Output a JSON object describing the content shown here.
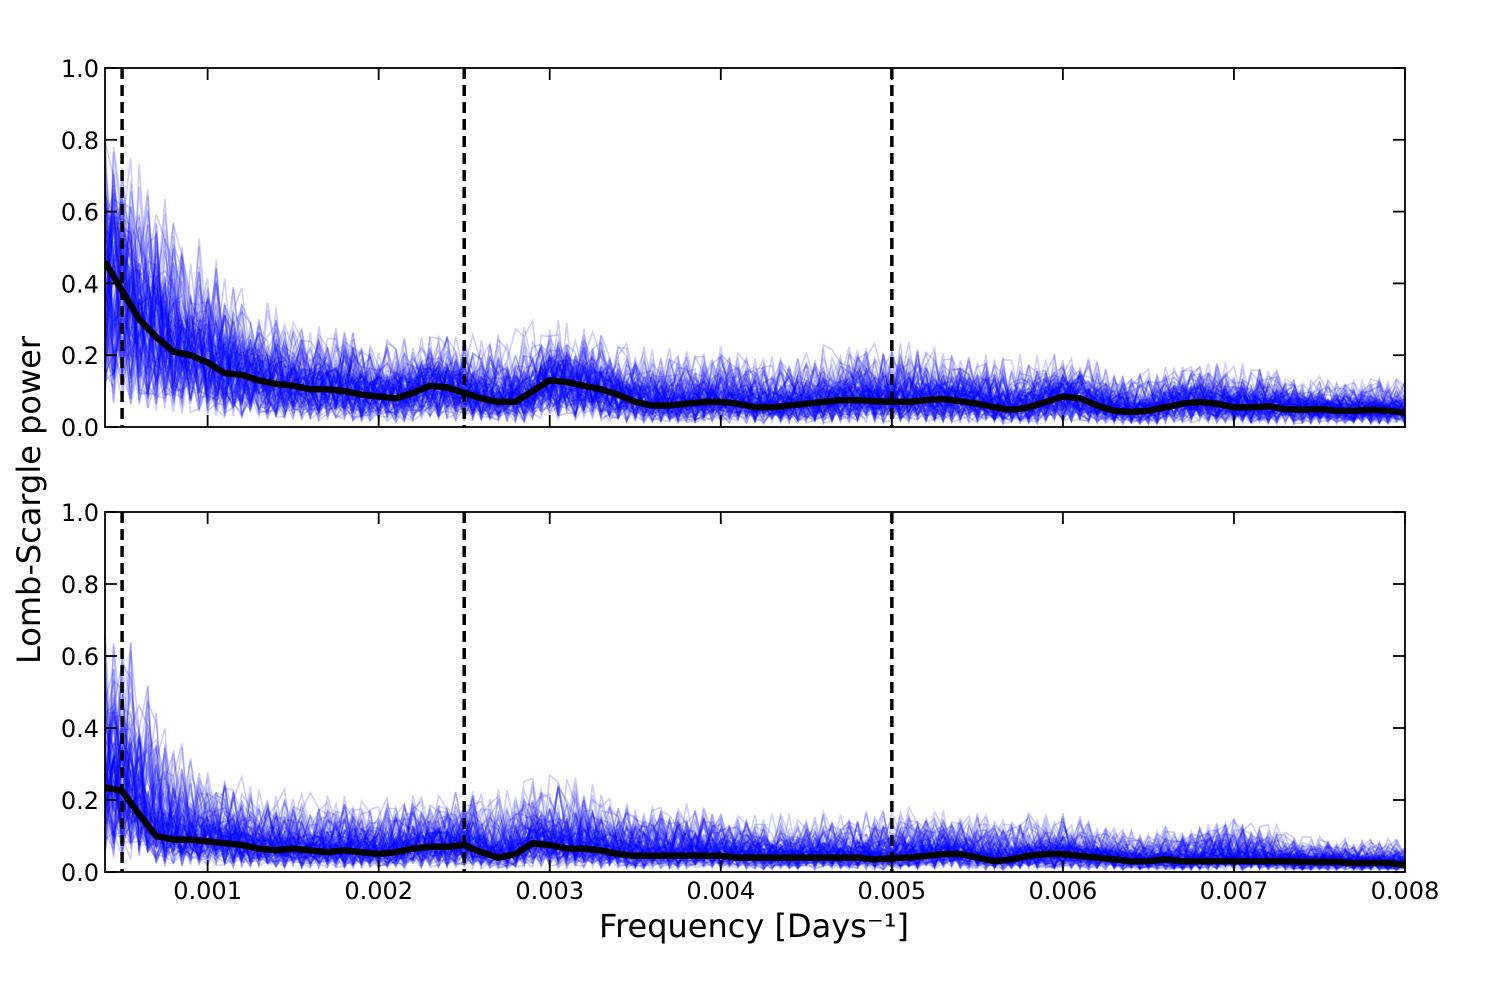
{
  "chart_data": [
    {
      "type": "line",
      "panel": "top",
      "xlim": [
        0.0004,
        0.008
      ],
      "ylim": [
        0.0,
        1.0
      ],
      "x_ticks": [
        0.001,
        0.002,
        0.003,
        0.004,
        0.005,
        0.006,
        0.007,
        0.008
      ],
      "y_ticks": [
        0.0,
        0.2,
        0.4,
        0.6,
        0.8,
        1.0
      ],
      "y_tick_labels": [
        "0.0",
        "0.2",
        "0.4",
        "0.6",
        "0.8",
        "1.0"
      ],
      "vlines": [
        0.0005,
        0.0025,
        0.005
      ],
      "vline_style": "dashed",
      "mean_series": {
        "color": "#000000",
        "x": [
          0.0004,
          0.0005,
          0.0006,
          0.0007,
          0.0008,
          0.0009,
          0.001,
          0.0011,
          0.0012,
          0.0013,
          0.0014,
          0.0015,
          0.0016,
          0.0017,
          0.0018,
          0.0019,
          0.002,
          0.0021,
          0.0022,
          0.0023,
          0.0024,
          0.0025,
          0.0026,
          0.0027,
          0.0028,
          0.0029,
          0.003,
          0.0031,
          0.0032,
          0.0033,
          0.0034,
          0.0035,
          0.0036,
          0.0037,
          0.0038,
          0.0039,
          0.004,
          0.0041,
          0.0042,
          0.0043,
          0.0044,
          0.0045,
          0.0046,
          0.0047,
          0.0048,
          0.0049,
          0.005,
          0.0051,
          0.0052,
          0.0053,
          0.0054,
          0.0055,
          0.0056,
          0.0057,
          0.0058,
          0.0059,
          0.006,
          0.0061,
          0.0062,
          0.0063,
          0.0064,
          0.0065,
          0.0066,
          0.0067,
          0.0068,
          0.0069,
          0.007,
          0.0071,
          0.0072,
          0.0073,
          0.0074,
          0.0075,
          0.0076,
          0.0077,
          0.0078,
          0.0079,
          0.008
        ],
        "y": [
          0.46,
          0.38,
          0.3,
          0.25,
          0.21,
          0.2,
          0.18,
          0.15,
          0.145,
          0.13,
          0.12,
          0.115,
          0.105,
          0.105,
          0.1,
          0.09,
          0.085,
          0.08,
          0.095,
          0.115,
          0.11,
          0.095,
          0.08,
          0.07,
          0.07,
          0.1,
          0.13,
          0.125,
          0.115,
          0.105,
          0.09,
          0.07,
          0.06,
          0.06,
          0.065,
          0.07,
          0.07,
          0.065,
          0.055,
          0.055,
          0.06,
          0.065,
          0.07,
          0.075,
          0.075,
          0.072,
          0.07,
          0.07,
          0.075,
          0.078,
          0.072,
          0.065,
          0.055,
          0.048,
          0.055,
          0.07,
          0.085,
          0.08,
          0.06,
          0.045,
          0.042,
          0.045,
          0.055,
          0.065,
          0.07,
          0.065,
          0.055,
          0.055,
          0.058,
          0.05,
          0.048,
          0.05,
          0.045,
          0.045,
          0.048,
          0.045,
          0.04
        ]
      },
      "sample_series": {
        "color": "#0000ff",
        "opacity": 0.2,
        "count": 100,
        "x_step": 5e-05,
        "envelope": {
          "x": [
            0.0004,
            0.0006,
            0.0008,
            0.001,
            0.0012,
            0.0015,
            0.002,
            0.0025,
            0.003,
            0.0035,
            0.004,
            0.0045,
            0.005,
            0.0055,
            0.006,
            0.0065,
            0.007,
            0.0075,
            0.008
          ],
          "y": [
            0.78,
            0.72,
            0.62,
            0.48,
            0.38,
            0.3,
            0.24,
            0.25,
            0.3,
            0.22,
            0.22,
            0.22,
            0.24,
            0.2,
            0.2,
            0.16,
            0.18,
            0.14,
            0.13
          ]
        }
      }
    },
    {
      "type": "line",
      "panel": "bottom",
      "xlim": [
        0.0004,
        0.008
      ],
      "ylim": [
        0.0,
        1.0
      ],
      "x_ticks": [
        0.001,
        0.002,
        0.003,
        0.004,
        0.005,
        0.006,
        0.007,
        0.008
      ],
      "x_tick_labels": [
        "0.001",
        "0.002",
        "0.003",
        "0.004",
        "0.005",
        "0.006",
        "0.007",
        "0.008"
      ],
      "y_ticks": [
        0.0,
        0.2,
        0.4,
        0.6,
        0.8,
        1.0
      ],
      "y_tick_labels": [
        "0.0",
        "0.2",
        "0.4",
        "0.6",
        "0.8",
        "1.0"
      ],
      "vlines": [
        0.0005,
        0.0025,
        0.005
      ],
      "vline_style": "dashed",
      "mean_series": {
        "color": "#000000",
        "x": [
          0.0004,
          0.0005,
          0.0006,
          0.0007,
          0.0008,
          0.0009,
          0.001,
          0.0011,
          0.0012,
          0.0013,
          0.0014,
          0.0015,
          0.0016,
          0.0017,
          0.0018,
          0.0019,
          0.002,
          0.0021,
          0.0022,
          0.0023,
          0.0024,
          0.0025,
          0.0026,
          0.0027,
          0.0028,
          0.0029,
          0.003,
          0.0031,
          0.0032,
          0.0033,
          0.0034,
          0.0035,
          0.0036,
          0.0037,
          0.0038,
          0.0039,
          0.004,
          0.0041,
          0.0042,
          0.0043,
          0.0044,
          0.0045,
          0.0046,
          0.0047,
          0.0048,
          0.0049,
          0.005,
          0.0051,
          0.0052,
          0.0053,
          0.0054,
          0.0055,
          0.0056,
          0.0057,
          0.0058,
          0.0059,
          0.006,
          0.0061,
          0.0062,
          0.0063,
          0.0064,
          0.0065,
          0.0066,
          0.0067,
          0.0068,
          0.0069,
          0.007,
          0.0071,
          0.0072,
          0.0073,
          0.0074,
          0.0075,
          0.0076,
          0.0077,
          0.0078,
          0.0079,
          0.008
        ],
        "y": [
          0.235,
          0.225,
          0.16,
          0.1,
          0.09,
          0.09,
          0.085,
          0.08,
          0.075,
          0.065,
          0.06,
          0.065,
          0.06,
          0.055,
          0.06,
          0.055,
          0.05,
          0.055,
          0.065,
          0.07,
          0.07,
          0.075,
          0.055,
          0.04,
          0.05,
          0.08,
          0.075,
          0.065,
          0.065,
          0.06,
          0.05,
          0.045,
          0.045,
          0.045,
          0.045,
          0.045,
          0.045,
          0.04,
          0.04,
          0.04,
          0.04,
          0.04,
          0.04,
          0.04,
          0.04,
          0.035,
          0.038,
          0.04,
          0.045,
          0.05,
          0.05,
          0.04,
          0.03,
          0.035,
          0.045,
          0.05,
          0.05,
          0.045,
          0.04,
          0.035,
          0.03,
          0.03,
          0.035,
          0.03,
          0.03,
          0.03,
          0.03,
          0.03,
          0.03,
          0.03,
          0.028,
          0.028,
          0.028,
          0.025,
          0.025,
          0.025,
          0.02
        ]
      },
      "sample_series": {
        "color": "#0000ff",
        "opacity": 0.2,
        "count": 100,
        "x_step": 5e-05,
        "envelope": {
          "x": [
            0.0004,
            0.0005,
            0.0006,
            0.0008,
            0.001,
            0.0012,
            0.0015,
            0.002,
            0.0025,
            0.003,
            0.0035,
            0.004,
            0.0045,
            0.005,
            0.0055,
            0.006,
            0.0065,
            0.007,
            0.0075,
            0.008
          ],
          "y": [
            0.65,
            0.7,
            0.55,
            0.38,
            0.28,
            0.26,
            0.22,
            0.2,
            0.22,
            0.28,
            0.2,
            0.18,
            0.16,
            0.18,
            0.16,
            0.16,
            0.12,
            0.16,
            0.1,
            0.09
          ]
        }
      }
    }
  ],
  "xlabel": "Frequency [Days⁻¹]",
  "ylabel": "Lomb-Scargle power"
}
